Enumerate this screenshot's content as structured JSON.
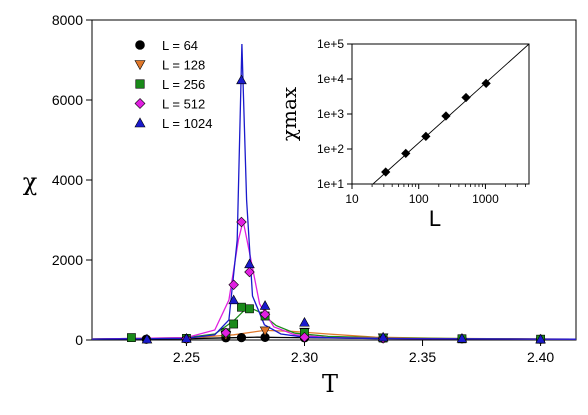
{
  "chart_data": [
    {
      "type": "line",
      "xlabel": "T",
      "ylabel": "χ",
      "xlim": [
        2.21,
        2.415
      ],
      "ylim": [
        0,
        8000
      ],
      "xticks": [
        2.25,
        2.3,
        2.35,
        2.4
      ],
      "xtick_labels": [
        "2.25",
        "2.30",
        "2.35",
        "2.40"
      ],
      "yticks": [
        0,
        2000,
        4000,
        6000,
        8000
      ],
      "ytick_labels": [
        "0",
        "2000",
        "4000",
        "6000",
        "8000"
      ],
      "legend_position": "top-left",
      "series": [
        {
          "name": "L = 64",
          "marker": "circle",
          "color": "#000000",
          "points": [
            [
              2.233,
              20
            ],
            [
              2.25,
              30
            ],
            [
              2.2667,
              55
            ],
            [
              2.2733,
              60
            ],
            [
              2.2833,
              65
            ],
            [
              2.3,
              55
            ],
            [
              2.3333,
              40
            ],
            [
              2.3667,
              30
            ],
            [
              2.4,
              20
            ]
          ],
          "curve": [
            [
              2.21,
              22
            ],
            [
              2.25,
              32
            ],
            [
              2.27,
              58
            ],
            [
              2.28,
              70
            ],
            [
              2.29,
              62
            ],
            [
              2.32,
              45
            ],
            [
              2.36,
              32
            ],
            [
              2.4,
              22
            ],
            [
              2.415,
              20
            ]
          ]
        },
        {
          "name": "L = 128",
          "marker": "triangle-down",
          "color": "#e0782a",
          "points": [
            [
              2.2667,
              120
            ],
            [
              2.2833,
              230
            ],
            [
              2.3,
              200
            ],
            [
              2.3333,
              60
            ]
          ],
          "curve": [
            [
              2.21,
              25
            ],
            [
              2.25,
              50
            ],
            [
              2.27,
              130
            ],
            [
              2.283,
              240
            ],
            [
              2.295,
              215
            ],
            [
              2.31,
              150
            ],
            [
              2.33,
              70
            ],
            [
              2.36,
              40
            ],
            [
              2.4,
              25
            ],
            [
              2.415,
              22
            ]
          ]
        },
        {
          "name": "L = 256",
          "marker": "square",
          "color": "#1a8a1a",
          "points": [
            [
              2.2267,
              60
            ],
            [
              2.25,
              40
            ],
            [
              2.2667,
              180
            ],
            [
              2.27,
              400
            ],
            [
              2.2733,
              820
            ],
            [
              2.2767,
              780
            ],
            [
              2.2833,
              600
            ],
            [
              2.3,
              180
            ],
            [
              2.3333,
              50
            ],
            [
              2.3667,
              30
            ],
            [
              2.4,
              20
            ]
          ],
          "curve": [
            [
              2.21,
              25
            ],
            [
              2.25,
              60
            ],
            [
              2.262,
              150
            ],
            [
              2.27,
              480
            ],
            [
              2.276,
              830
            ],
            [
              2.281,
              700
            ],
            [
              2.288,
              360
            ],
            [
              2.296,
              170
            ],
            [
              2.31,
              90
            ],
            [
              2.34,
              45
            ],
            [
              2.4,
              22
            ],
            [
              2.415,
              20
            ]
          ]
        },
        {
          "name": "L = 512",
          "marker": "diamond",
          "color": "#e020e0",
          "points": [
            [
              2.25,
              30
            ],
            [
              2.2667,
              180
            ],
            [
              2.27,
              1380
            ],
            [
              2.2733,
              2950
            ],
            [
              2.2767,
              1700
            ],
            [
              2.2833,
              640
            ],
            [
              2.3,
              70
            ],
            [
              2.3333,
              40
            ]
          ],
          "curve": [
            [
              2.21,
              25
            ],
            [
              2.25,
              60
            ],
            [
              2.262,
              250
            ],
            [
              2.268,
              1000
            ],
            [
              2.272,
              2500
            ],
            [
              2.274,
              2980
            ],
            [
              2.277,
              2100
            ],
            [
              2.281,
              900
            ],
            [
              2.287,
              330
            ],
            [
              2.296,
              130
            ],
            [
              2.31,
              60
            ],
            [
              2.35,
              30
            ],
            [
              2.415,
              20
            ]
          ]
        },
        {
          "name": "L = 1024",
          "marker": "triangle-up",
          "color": "#1a1acc",
          "points": [
            [
              2.2333,
              20
            ],
            [
              2.25,
              40
            ],
            [
              2.27,
              1000
            ],
            [
              2.2733,
              6500
            ],
            [
              2.2767,
              1900
            ],
            [
              2.2833,
              860
            ],
            [
              2.3,
              440
            ],
            [
              2.3333,
              70
            ],
            [
              2.3667,
              40
            ],
            [
              2.4,
              20
            ]
          ],
          "curve": [
            [
              2.21,
              22
            ],
            [
              2.25,
              40
            ],
            [
              2.262,
              130
            ],
            [
              2.268,
              500
            ],
            [
              2.2715,
              2500
            ],
            [
              2.2735,
              7400
            ],
            [
              2.2755,
              3500
            ],
            [
              2.278,
              1100
            ],
            [
              2.283,
              380
            ],
            [
              2.29,
              150
            ],
            [
              2.3,
              70
            ],
            [
              2.33,
              35
            ],
            [
              2.415,
              20
            ]
          ]
        }
      ]
    },
    {
      "type": "scatter",
      "xlabel": "L",
      "ylabel": "χmax",
      "x_scale": "log",
      "y_scale": "log",
      "xlim": [
        10,
        4500
      ],
      "ylim": [
        10,
        100000
      ],
      "xticks": [
        10,
        100,
        1000
      ],
      "xtick_labels": [
        "10",
        "100",
        "1000"
      ],
      "yticks": [
        10,
        100,
        1000,
        10000,
        100000
      ],
      "ytick_labels": [
        "1e+1",
        "1e+2",
        "1e+3",
        "1e+4",
        "1e+5"
      ],
      "points": [
        [
          32,
          22
        ],
        [
          64,
          75
        ],
        [
          128,
          230
        ],
        [
          256,
          880
        ],
        [
          512,
          2950
        ],
        [
          1024,
          7500
        ]
      ],
      "fit_line": [
        [
          20,
          9.5
        ],
        [
          4500,
          100000
        ]
      ]
    }
  ]
}
